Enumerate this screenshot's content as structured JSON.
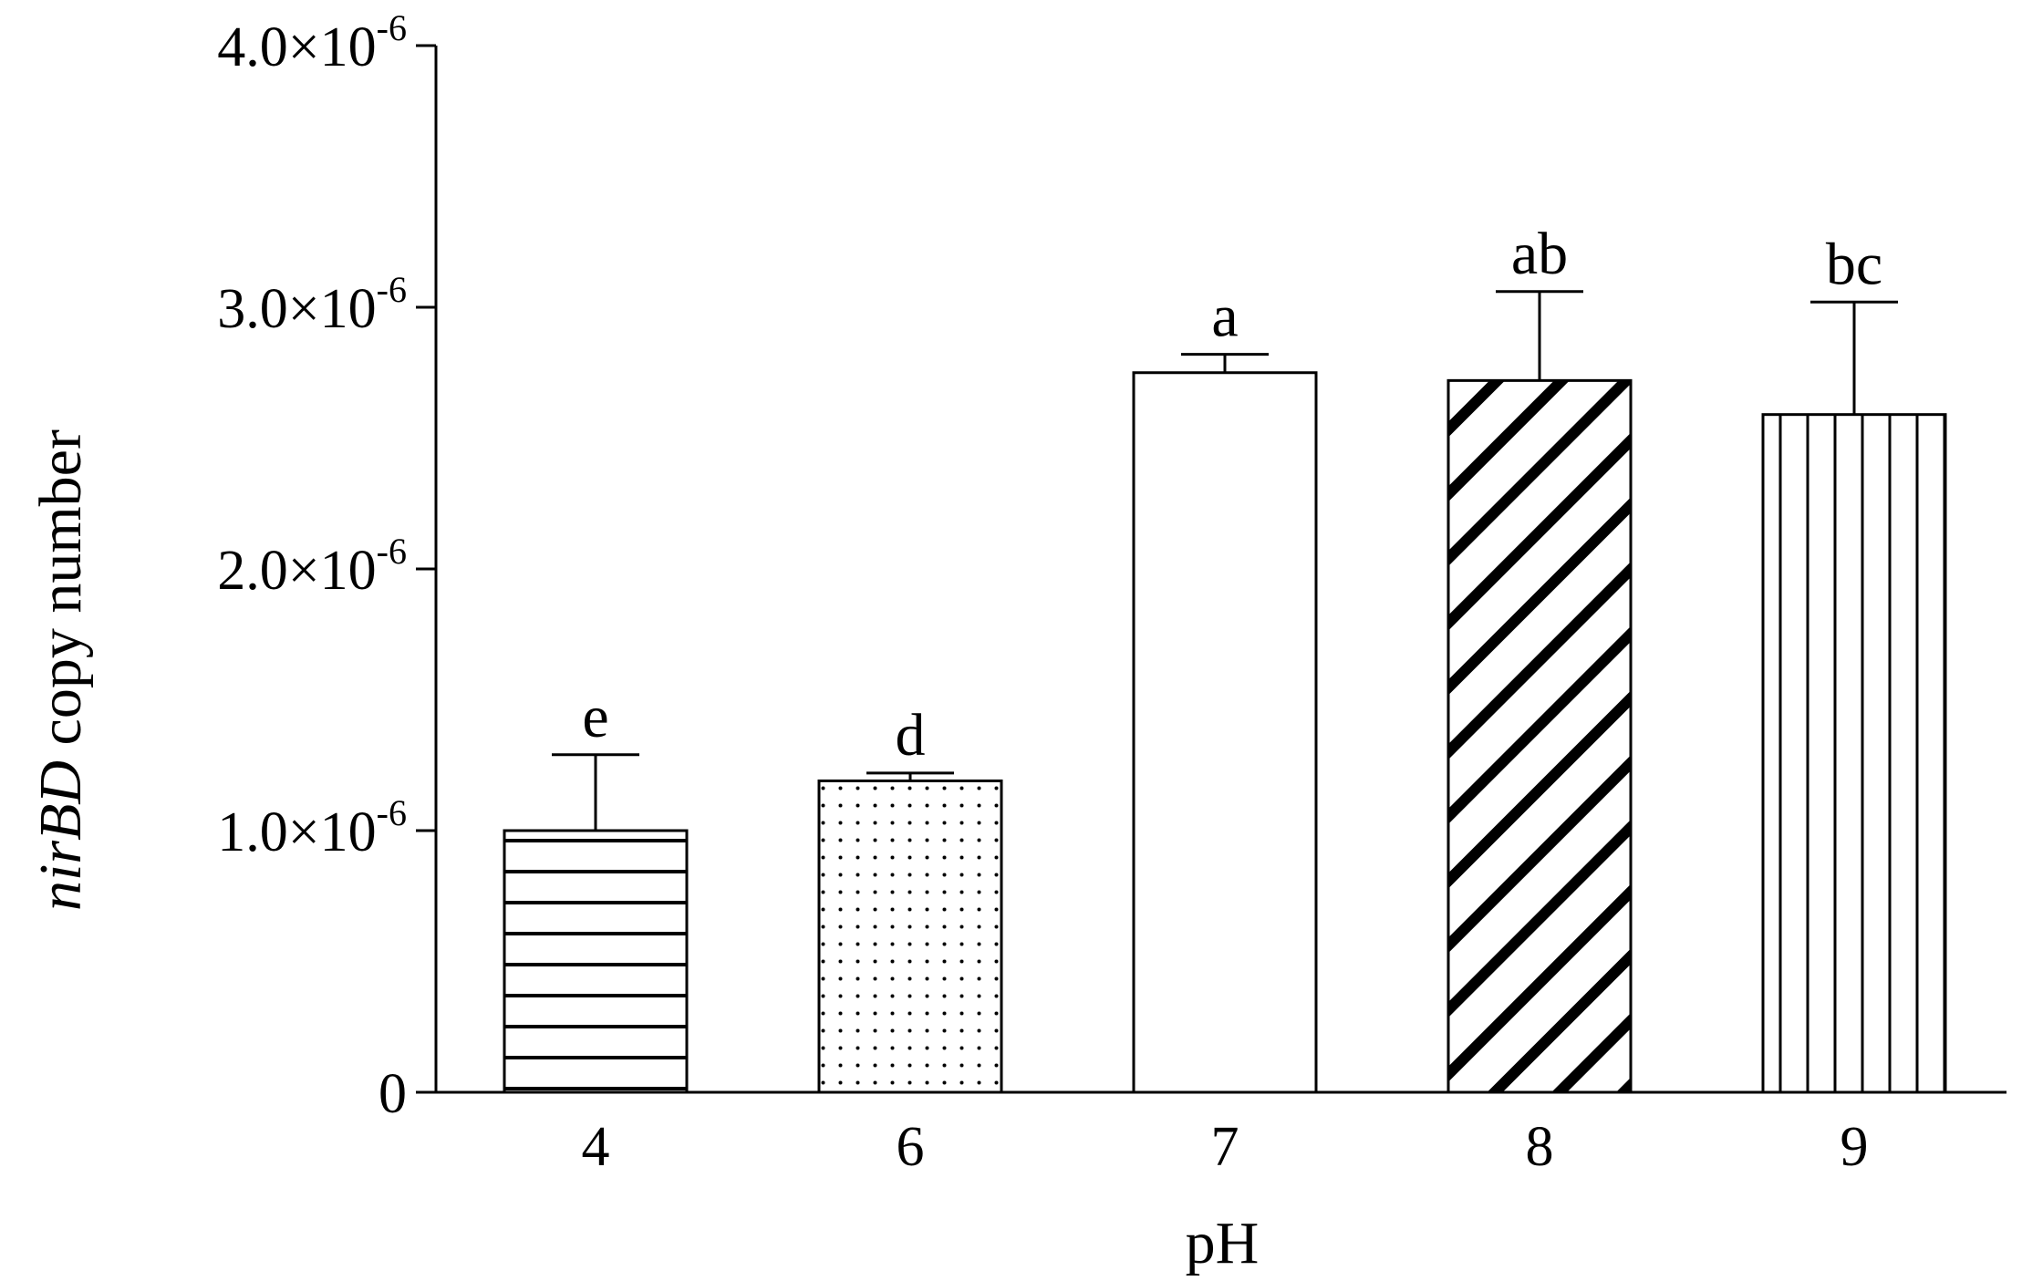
{
  "chart_data": {
    "type": "bar",
    "categories": [
      "4",
      "6",
      "7",
      "8",
      "9"
    ],
    "values": [
      1e-06,
      1.19e-06,
      2.75e-06,
      2.72e-06,
      2.59e-06
    ],
    "errors": [
      2.9e-07,
      3e-08,
      7e-08,
      3.4e-07,
      4.3e-07
    ],
    "significance": [
      "e",
      "d",
      "a",
      "ab",
      "bc"
    ],
    "patterns": [
      "horizontal-lines",
      "dots",
      "none",
      "diagonal-lines",
      "vertical-lines"
    ],
    "xlabel": "pH",
    "ylabel_italic": "nirBD",
    "ylabel_rest": " copy number",
    "ylim": [
      0,
      4e-06
    ],
    "yticks": [
      {
        "value": 0,
        "mantissa": "0",
        "times": "",
        "base": "",
        "exp": ""
      },
      {
        "value": 1e-06,
        "mantissa": "1.0",
        "times": "×",
        "base": "10",
        "exp": "-6"
      },
      {
        "value": 2e-06,
        "mantissa": "2.0",
        "times": "×",
        "base": "10",
        "exp": "-6"
      },
      {
        "value": 3e-06,
        "mantissa": "3.0",
        "times": "×",
        "base": "10",
        "exp": "-6"
      },
      {
        "value": 4e-06,
        "mantissa": "4.0",
        "times": "×",
        "base": "10",
        "exp": "-6"
      }
    ],
    "grid": false,
    "legend": "none",
    "colors": {
      "bar_fill": "#ffffff",
      "stroke": "#000000"
    }
  }
}
